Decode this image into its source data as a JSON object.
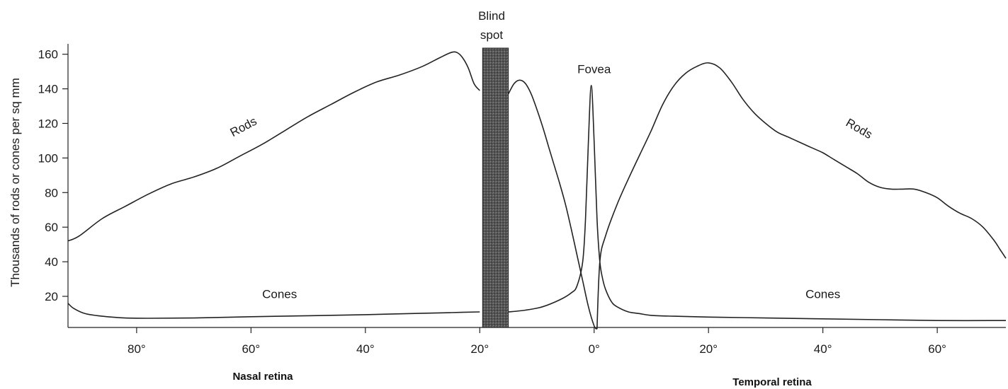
{
  "chart_data": {
    "type": "line",
    "ylabel": "Thousands of rods or cones per sq mm",
    "xlabel_left": "Nasal retina",
    "xlabel_right": "Temporal retina",
    "xlim": [
      -92,
      72
    ],
    "ylim": [
      2,
      166
    ],
    "x_ticks": [
      {
        "value": -80,
        "label": "80°"
      },
      {
        "value": -60,
        "label": "60°"
      },
      {
        "value": -40,
        "label": "40°"
      },
      {
        "value": -20,
        "label": "20°"
      },
      {
        "value": 0,
        "label": "0°"
      },
      {
        "value": 20,
        "label": "20°"
      },
      {
        "value": 40,
        "label": "40°"
      },
      {
        "value": 60,
        "label": "60°"
      }
    ],
    "y_ticks": [
      20,
      40,
      60,
      80,
      100,
      120,
      140,
      160
    ],
    "blind_spot": {
      "x_from": -19.5,
      "x_to": -15,
      "label_line1": "Blind",
      "label_line2": "spot"
    },
    "annotations": [
      {
        "text": "Fovea",
        "x": 0,
        "y": 149
      },
      {
        "text": "Rods",
        "x": -61,
        "y": 116,
        "rotate": -28
      },
      {
        "text": "Rods",
        "x": 46,
        "y": 115,
        "rotate": 30
      },
      {
        "text": "Cones",
        "x": -55,
        "y": 19
      },
      {
        "text": "Cones",
        "x": 40,
        "y": 19
      }
    ],
    "series": [
      {
        "name": "Rods",
        "segments": [
          {
            "x": [
              -92,
              -90,
              -86,
              -82,
              -78,
              -74,
              -70,
              -66,
              -62,
              -58,
              -54,
              -50,
              -46,
              -42,
              -38,
              -34,
              -30,
              -27,
              -25,
              -24,
              -23,
              -22,
              -21,
              -20
            ],
            "y": [
              52,
              55,
              65,
              72,
              79,
              85,
              89,
              94,
              101,
              108,
              116,
              124,
              131,
              138,
              144,
              148,
              153,
              158,
              161,
              161,
              158,
              152,
              143,
              139
            ]
          },
          {
            "x": [
              -15,
              -14,
              -13,
              -12,
              -11,
              -10,
              -9,
              -8,
              -7,
              -6,
              -5,
              -4,
              -3,
              -2,
              -1,
              0,
              0.5
            ],
            "y": [
              137,
              143,
              145,
              143,
              137,
              128,
              118,
              107,
              96,
              85,
              73,
              59,
              44,
              29,
              14,
              3,
              1
            ]
          },
          {
            "x": [
              0.5,
              1,
              2,
              4,
              6,
              8,
              10,
              12,
              14,
              16,
              18,
              20,
              22,
              24,
              26,
              28,
              30,
              32,
              34,
              36,
              38,
              40,
              42,
              44,
              46,
              48,
              50,
              52,
              54,
              56,
              58,
              60,
              62,
              64,
              66,
              68,
              70,
              71,
              72
            ],
            "y": [
              1,
              40,
              55,
              73,
              88,
              102,
              116,
              131,
              142,
              149,
              153,
              155,
              152,
              144,
              134,
              126,
              120,
              115,
              112,
              109,
              106,
              103,
              99,
              95,
              91,
              86,
              83,
              82,
              82,
              82,
              80,
              77,
              72,
              68,
              65,
              60,
              52,
              47,
              42
            ]
          }
        ]
      },
      {
        "name": "Cones",
        "segments": [
          {
            "x": [
              -92,
              -91,
              -89,
              -86,
              -82,
              -78,
              -70,
              -60,
              -50,
              -40,
              -30,
              -25,
              -20
            ],
            "y": [
              16,
              13,
              10,
              8.5,
              7.5,
              7.3,
              7.5,
              8.2,
              8.8,
              9.4,
              10.2,
              10.6,
              11
            ]
          },
          {
            "x": [
              -15,
              -12,
              -9,
              -6,
              -4,
              -3,
              -2,
              -1.5,
              -1,
              -0.5,
              0,
              0.5,
              1,
              1.5,
              2,
              3,
              4,
              6,
              8,
              10,
              14,
              20,
              30,
              40,
              50,
              60,
              72
            ],
            "y": [
              11,
              12,
              14,
              18,
              22,
              26,
              40,
              65,
              110,
              142,
              110,
              65,
              40,
              30,
              24,
              17,
              14,
              11,
              10,
              9,
              8.5,
              8,
              7.5,
              7,
              6.5,
              6,
              6
            ]
          }
        ]
      }
    ]
  }
}
